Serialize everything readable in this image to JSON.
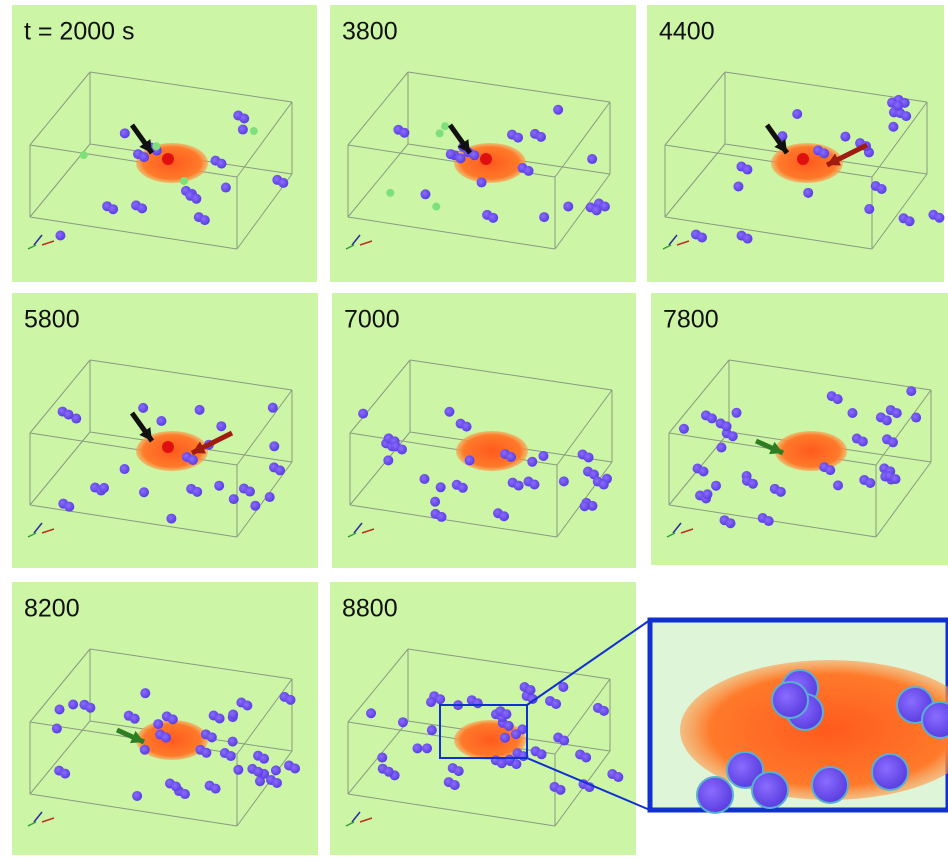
{
  "panels": [
    {
      "label": "t = 2000 s"
    },
    {
      "label": "3800"
    },
    {
      "label": "4400"
    },
    {
      "label": "5800"
    },
    {
      "label": "7000"
    },
    {
      "label": "7800"
    },
    {
      "label": "8200"
    },
    {
      "label": "8800"
    }
  ]
}
